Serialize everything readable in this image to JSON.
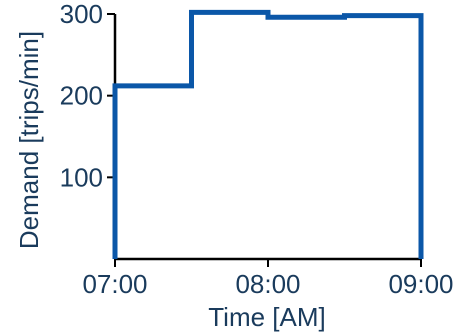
{
  "chart_data": {
    "type": "line",
    "step": true,
    "xlabel": "Time [AM]",
    "ylabel": "Demand [trips/min]",
    "xlim": [
      0,
      120
    ],
    "ylim": [
      0,
      300
    ],
    "x_ticks": [
      {
        "value": 0,
        "label": "07:00"
      },
      {
        "value": 60,
        "label": "08:00"
      },
      {
        "value": 120,
        "label": "09:00"
      }
    ],
    "y_ticks": [
      {
        "value": 100,
        "label": "100"
      },
      {
        "value": 200,
        "label": "200"
      },
      {
        "value": 300,
        "label": "300"
      }
    ],
    "grid": false,
    "series": [
      {
        "color": "#0b57a8",
        "points": [
          {
            "x": 0,
            "y": 0
          },
          {
            "x": 0,
            "y": 212
          },
          {
            "x": 30,
            "y": 212
          },
          {
            "x": 30,
            "y": 302
          },
          {
            "x": 60,
            "y": 302
          },
          {
            "x": 60,
            "y": 296
          },
          {
            "x": 90,
            "y": 296
          },
          {
            "x": 90,
            "y": 298
          },
          {
            "x": 120,
            "y": 298
          },
          {
            "x": 120,
            "y": 0
          }
        ]
      }
    ]
  }
}
